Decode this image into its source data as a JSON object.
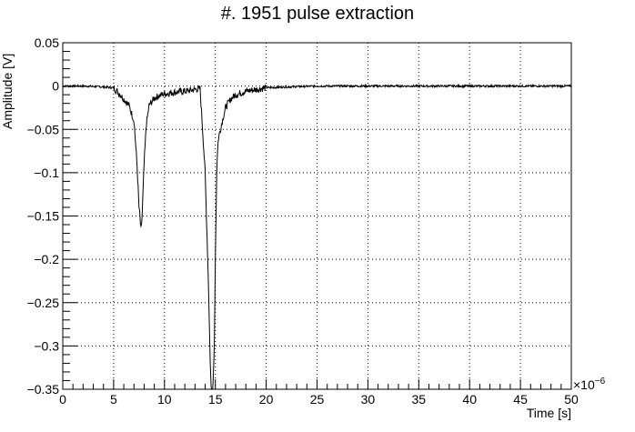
{
  "chart_data": {
    "type": "line",
    "title": "#. 1951 pulse extraction",
    "xlabel": "Time [s]",
    "ylabel": "Amplitude [V]",
    "x_multiplier_label": "×10",
    "x_multiplier_exponent": "−6",
    "xlim": [
      0,
      50
    ],
    "ylim": [
      -0.35,
      0.05
    ],
    "x_ticks": [
      0,
      5,
      10,
      15,
      20,
      25,
      30,
      35,
      40,
      45,
      50
    ],
    "x_tick_labels": [
      "0",
      "5",
      "10",
      "15",
      "20",
      "25",
      "30",
      "35",
      "40",
      "45",
      "50"
    ],
    "y_ticks": [
      0.05,
      0,
      -0.05,
      -0.1,
      -0.15,
      -0.2,
      -0.25,
      -0.3,
      -0.35
    ],
    "y_tick_labels": [
      "0.05",
      "0",
      "−0.05",
      "−0.1",
      "−0.15",
      "−0.2",
      "−0.25",
      "−0.3",
      "−0.35"
    ],
    "grid": true,
    "series": [
      {
        "color": "#000000",
        "x": [
          0,
          2,
          4,
          5,
          5.5,
          6,
          6.5,
          7,
          7.3,
          7.5,
          7.7,
          7.8,
          8,
          8.2,
          8.5,
          9,
          9.5,
          10,
          11,
          12,
          13,
          13.5,
          14,
          14.3,
          14.5,
          14.6,
          14.75,
          14.9,
          15,
          15.15,
          15.3,
          15.5,
          15.8,
          16,
          16.5,
          17,
          18,
          19,
          20,
          22,
          25,
          30,
          35,
          40,
          45,
          50
        ],
        "y": [
          0,
          0,
          -0.001,
          -0.002,
          -0.008,
          -0.015,
          -0.022,
          -0.04,
          -0.09,
          -0.14,
          -0.168,
          -0.15,
          -0.09,
          -0.045,
          -0.022,
          -0.014,
          -0.011,
          -0.009,
          -0.007,
          -0.006,
          -0.004,
          -0.003,
          -0.1,
          -0.22,
          -0.32,
          -0.35,
          -0.35,
          -0.3,
          -0.2,
          -0.09,
          -0.06,
          -0.05,
          -0.035,
          -0.025,
          -0.015,
          -0.01,
          -0.006,
          -0.004,
          -0.002,
          -0.001,
          0,
          0,
          0,
          0,
          0,
          0
        ]
      }
    ]
  }
}
